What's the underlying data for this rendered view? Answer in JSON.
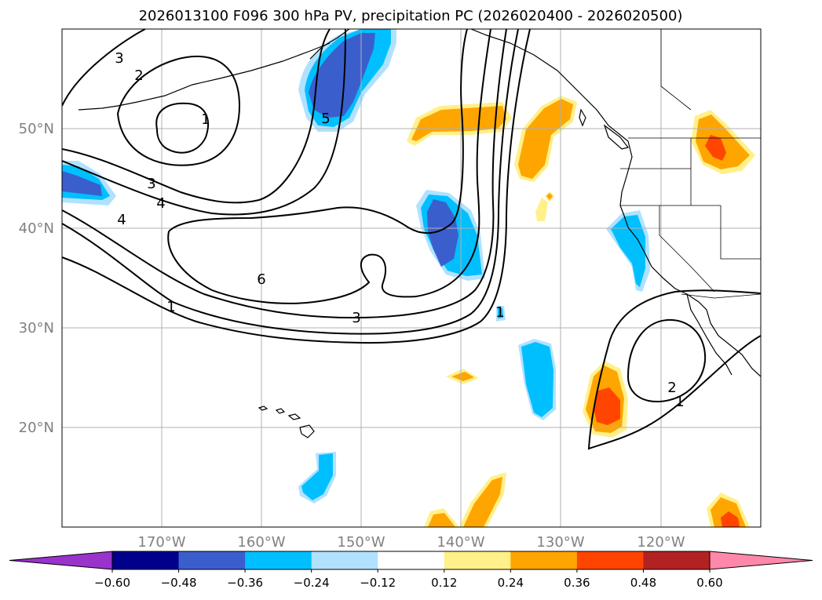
{
  "title": "2026013100 F096 300 hPa PV, precipitation PC (2026020400 - 2026020500)",
  "map": {
    "lon_range": [
      180,
      110
    ],
    "lat_range": [
      10,
      60
    ],
    "lat_ticks": [
      "20°N",
      "30°N",
      "40°N",
      "50°N"
    ],
    "lon_ticks": [
      "170°W",
      "160°W",
      "150°W",
      "140°W",
      "130°W",
      "120°W"
    ],
    "gridlines": true
  },
  "contour_labels": [
    "3",
    "2",
    "1",
    "5",
    "3",
    "4",
    "4",
    "6",
    "1",
    "3",
    "1",
    "2",
    "1"
  ],
  "colorbar": {
    "ticks": [
      "−0.60",
      "−0.48",
      "−0.36",
      "−0.24",
      "−0.12",
      "0.12",
      "0.24",
      "0.36",
      "0.48",
      "0.60"
    ],
    "colors": [
      "#9933cc",
      "#00008b",
      "#3a5fcd",
      "#00bfff",
      "#b0e2ff",
      "#ffffff",
      "#fff08a",
      "#ffa500",
      "#ff4500",
      "#b22222",
      "#ff88aa"
    ],
    "extend": "both"
  },
  "colors": {
    "blue_dark": "#3a5fcd",
    "blue": "#00bfff",
    "blue_light": "#b0e2ff",
    "yellow": "#fff08a",
    "orange": "#ffa500",
    "red": "#ff4500"
  }
}
